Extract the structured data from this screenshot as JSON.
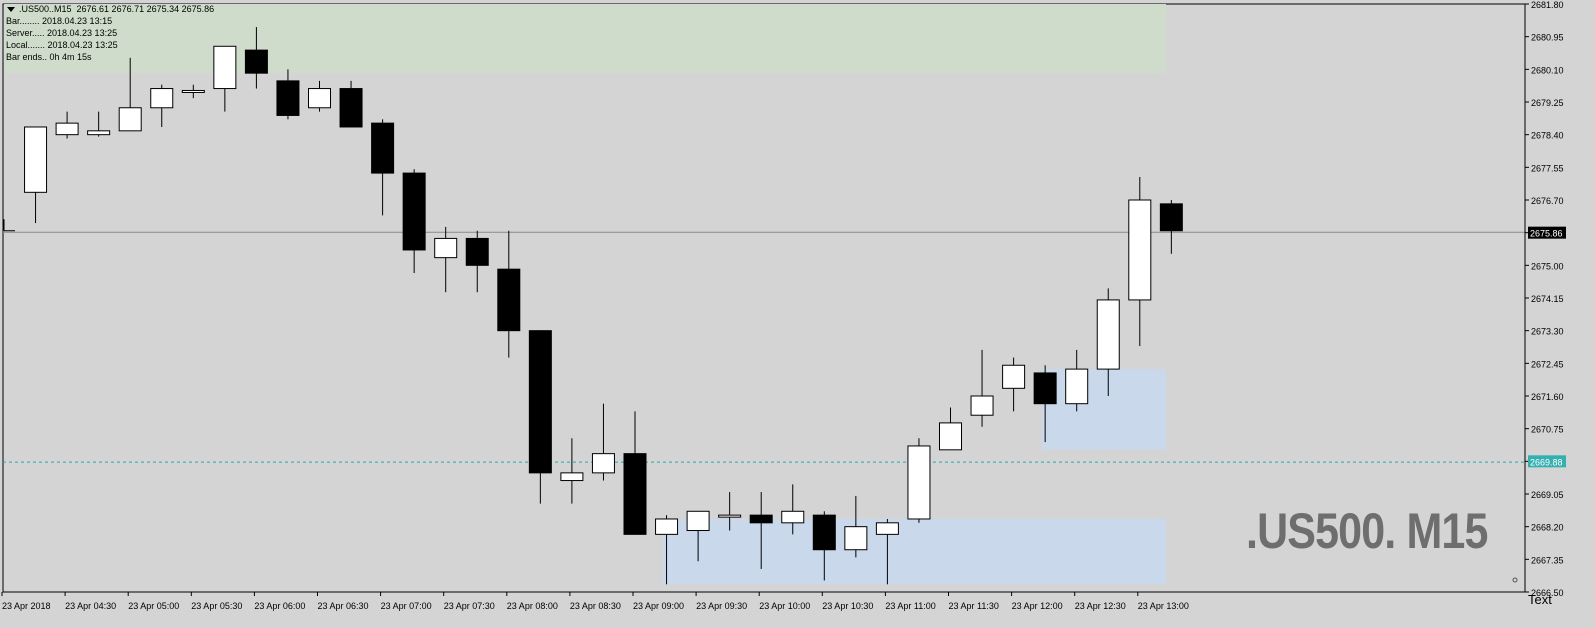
{
  "info": {
    "title": ".US500..M15  2676.61 2676.71 2675.34 2675.86",
    "bar": "Bar........ 2018.04.23 13:15",
    "server": "Server..... 2018.04.23 13:25",
    "local": "Local....... 2018.04.23 13:25",
    "bar_ends": "Bar ends.. 0h 4m 15s"
  },
  "watermark": ".US500. M15",
  "text_object": "Text",
  "colors": {
    "background": "#d4d4d4",
    "bull_body": "#ffffff",
    "bear_body": "#000000",
    "green_zone": "#cfdccb",
    "blue_zone": "#c9d8ea",
    "current_line": "#8a8a8a",
    "dashed_line": "#2aa6a6",
    "dashed_label_bg": "#35b0b0"
  },
  "chart_data": {
    "type": "candlestick",
    "symbol": ".US500",
    "timeframe": "M15",
    "ylim": [
      2666.5,
      2681.8
    ],
    "y_ticks": [
      "2681.80",
      "2680.95",
      "2680.10",
      "2679.25",
      "2678.40",
      "2677.55",
      "2676.70",
      "2675.86",
      "2675.00",
      "2674.15",
      "2673.30",
      "2672.45",
      "2671.60",
      "2670.75",
      "2669.88",
      "2669.05",
      "2668.20",
      "2667.35",
      "2666.50"
    ],
    "x_labels": [
      "23 Apr 2018",
      "23 Apr 04:30",
      "23 Apr 05:00",
      "23 Apr 05:30",
      "23 Apr 06:00",
      "23 Apr 06:30",
      "23 Apr 07:00",
      "23 Apr 07:30",
      "23 Apr 08:00",
      "23 Apr 08:30",
      "23 Apr 09:00",
      "23 Apr 09:30",
      "23 Apr 10:00",
      "23 Apr 10:30",
      "23 Apr 11:00",
      "23 Apr 11:30",
      "23 Apr 12:00",
      "23 Apr 12:30",
      "23 Apr 13:00"
    ],
    "current_price": "2675.86",
    "dashed_level": "2669.88",
    "candles": [
      {
        "o": 2675.9,
        "h": 2676.2,
        "l": 2675.9,
        "c": 2675.9
      },
      {
        "o": 2676.9,
        "h": 2678.6,
        "l": 2676.1,
        "c": 2678.6
      },
      {
        "o": 2678.4,
        "h": 2679.0,
        "l": 2678.3,
        "c": 2678.7
      },
      {
        "o": 2678.4,
        "h": 2679.0,
        "l": 2678.35,
        "c": 2678.5
      },
      {
        "o": 2678.5,
        "h": 2680.4,
        "l": 2678.5,
        "c": 2679.1
      },
      {
        "o": 2679.1,
        "h": 2679.7,
        "l": 2678.6,
        "c": 2679.6
      },
      {
        "o": 2679.55,
        "h": 2679.7,
        "l": 2679.35,
        "c": 2679.55
      },
      {
        "o": 2679.6,
        "h": 2680.7,
        "l": 2679.0,
        "c": 2680.7
      },
      {
        "o": 2680.6,
        "h": 2681.2,
        "l": 2679.6,
        "c": 2680.0
      },
      {
        "o": 2679.8,
        "h": 2680.1,
        "l": 2678.8,
        "c": 2678.9
      },
      {
        "o": 2679.1,
        "h": 2679.8,
        "l": 2679.0,
        "c": 2679.6
      },
      {
        "o": 2679.6,
        "h": 2679.8,
        "l": 2678.6,
        "c": 2678.6
      },
      {
        "o": 2678.7,
        "h": 2678.8,
        "l": 2676.3,
        "c": 2677.4
      },
      {
        "o": 2677.4,
        "h": 2677.5,
        "l": 2674.8,
        "c": 2675.4
      },
      {
        "o": 2675.2,
        "h": 2676.0,
        "l": 2674.3,
        "c": 2675.7
      },
      {
        "o": 2675.7,
        "h": 2675.9,
        "l": 2674.3,
        "c": 2675.0
      },
      {
        "o": 2674.9,
        "h": 2675.9,
        "l": 2672.6,
        "c": 2673.3
      },
      {
        "o": 2673.3,
        "h": 2673.3,
        "l": 2668.8,
        "c": 2669.6
      },
      {
        "o": 2669.4,
        "h": 2670.5,
        "l": 2668.8,
        "c": 2669.6
      },
      {
        "o": 2669.6,
        "h": 2671.4,
        "l": 2669.4,
        "c": 2670.1
      },
      {
        "o": 2670.1,
        "h": 2671.2,
        "l": 2668.0,
        "c": 2668.0
      },
      {
        "o": 2668.0,
        "h": 2668.5,
        "l": 2666.7,
        "c": 2668.4
      },
      {
        "o": 2668.1,
        "h": 2668.6,
        "l": 2667.3,
        "c": 2668.6
      },
      {
        "o": 2668.5,
        "h": 2669.1,
        "l": 2668.1,
        "c": 2668.5
      },
      {
        "o": 2668.5,
        "h": 2669.1,
        "l": 2667.1,
        "c": 2668.3
      },
      {
        "o": 2668.3,
        "h": 2669.3,
        "l": 2668.0,
        "c": 2668.6
      },
      {
        "o": 2668.5,
        "h": 2668.6,
        "l": 2666.8,
        "c": 2667.6
      },
      {
        "o": 2667.6,
        "h": 2669.0,
        "l": 2667.4,
        "c": 2668.2
      },
      {
        "o": 2668.0,
        "h": 2668.4,
        "l": 2666.7,
        "c": 2668.3
      },
      {
        "o": 2668.4,
        "h": 2670.5,
        "l": 2668.3,
        "c": 2670.3
      },
      {
        "o": 2670.2,
        "h": 2671.3,
        "l": 2670.2,
        "c": 2670.9
      },
      {
        "o": 2671.1,
        "h": 2672.8,
        "l": 2670.8,
        "c": 2671.6
      },
      {
        "o": 2671.8,
        "h": 2672.6,
        "l": 2671.2,
        "c": 2672.4
      },
      {
        "o": 2672.2,
        "h": 2672.4,
        "l": 2670.4,
        "c": 2671.4
      },
      {
        "o": 2671.4,
        "h": 2672.8,
        "l": 2671.2,
        "c": 2672.3
      },
      {
        "o": 2672.3,
        "h": 2674.4,
        "l": 2671.6,
        "c": 2674.1
      },
      {
        "o": 2674.1,
        "h": 2677.3,
        "l": 2672.9,
        "c": 2676.7
      },
      {
        "o": 2676.6,
        "h": 2676.7,
        "l": 2675.3,
        "c": 2675.9
      }
    ],
    "zones": [
      {
        "color": "green",
        "x_from": "23 Apr 2018",
        "x_to": "23 Apr 13:00",
        "y_from": 2680.0,
        "y_to": 2681.8
      },
      {
        "color": "blue",
        "x_from": "23 Apr 12:00",
        "x_to": "23 Apr 13:00",
        "y_from": 2670.2,
        "y_to": 2672.3
      },
      {
        "color": "blue",
        "x_from": "23 Apr 09:00",
        "x_to": "23 Apr 13:00",
        "y_from": 2666.7,
        "y_to": 2668.4
      }
    ]
  }
}
